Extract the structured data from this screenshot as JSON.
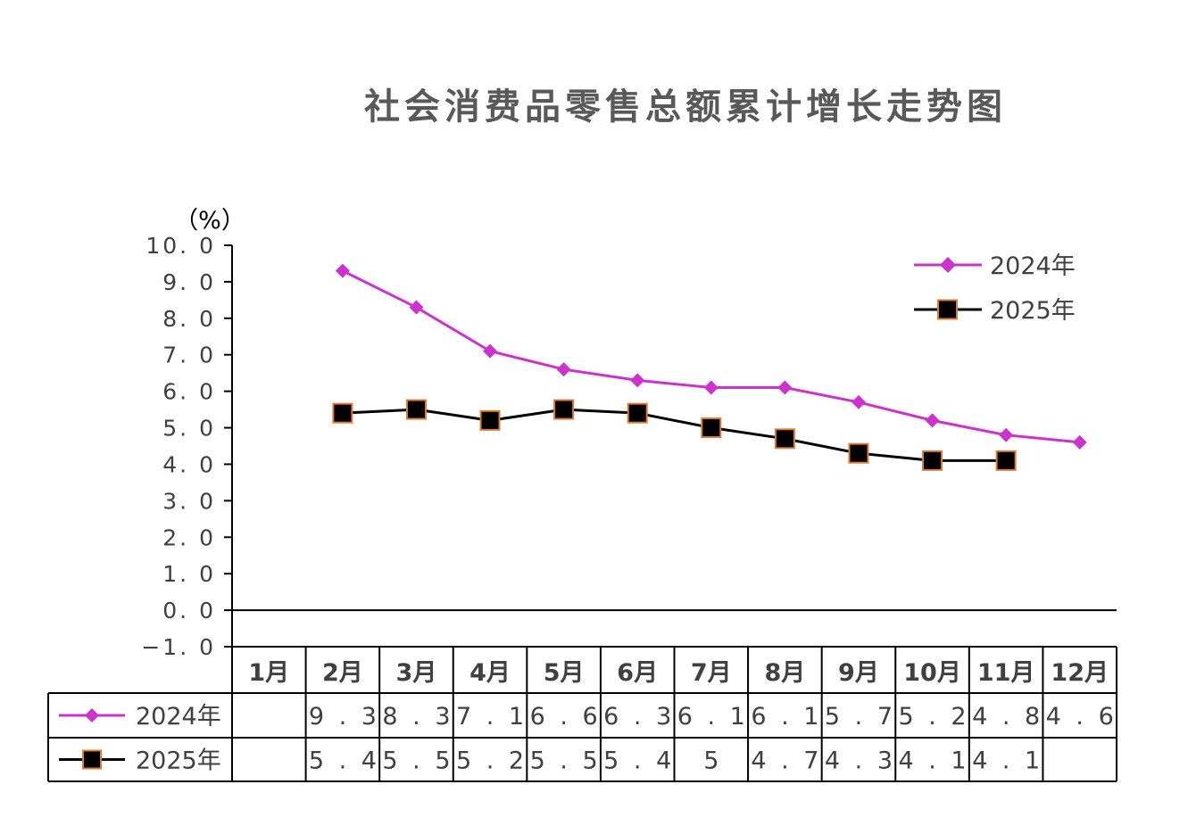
{
  "chart_data": {
    "type": "line",
    "title": "社会消费品零售总额累计增长走势图",
    "ylabel": "（%）",
    "ylim": [
      -1.0,
      10.0
    ],
    "yticks": [
      "10.0",
      "9.0",
      "8.0",
      "7.0",
      "6.0",
      "5.0",
      "4.0",
      "3.0",
      "2.0",
      "1.0",
      "0.0",
      "-1.0"
    ],
    "categories": [
      "1月",
      "2月",
      "3月",
      "4月",
      "5月",
      "6月",
      "7月",
      "8月",
      "9月",
      "10月",
      "11月",
      "12月"
    ],
    "legend_position": "top-right",
    "grid": false,
    "series": [
      {
        "name": "2024年",
        "color": "#cc33cc",
        "marker": "diamond",
        "values": [
          null,
          9.3,
          8.3,
          7.1,
          6.6,
          6.3,
          6.1,
          6.1,
          5.7,
          5.2,
          4.8,
          4.6
        ],
        "labels": [
          "",
          "9.3",
          "8.3",
          "7.1",
          "6.6",
          "6.3",
          "6.1",
          "6.1",
          "5.7",
          "5.2",
          "4.8",
          "4.6"
        ]
      },
      {
        "name": "2025年",
        "color": "#000000",
        "marker_edge": "#e07a30",
        "marker": "square",
        "values": [
          null,
          5.4,
          5.5,
          5.2,
          5.5,
          5.4,
          5.0,
          4.7,
          4.3,
          4.1,
          4.1,
          null
        ],
        "labels": [
          "",
          "5.4",
          "5.5",
          "5.2",
          "5.5",
          "5.4",
          "5",
          "4.7",
          "4.3",
          "4.1",
          "4.1",
          ""
        ]
      }
    ]
  }
}
